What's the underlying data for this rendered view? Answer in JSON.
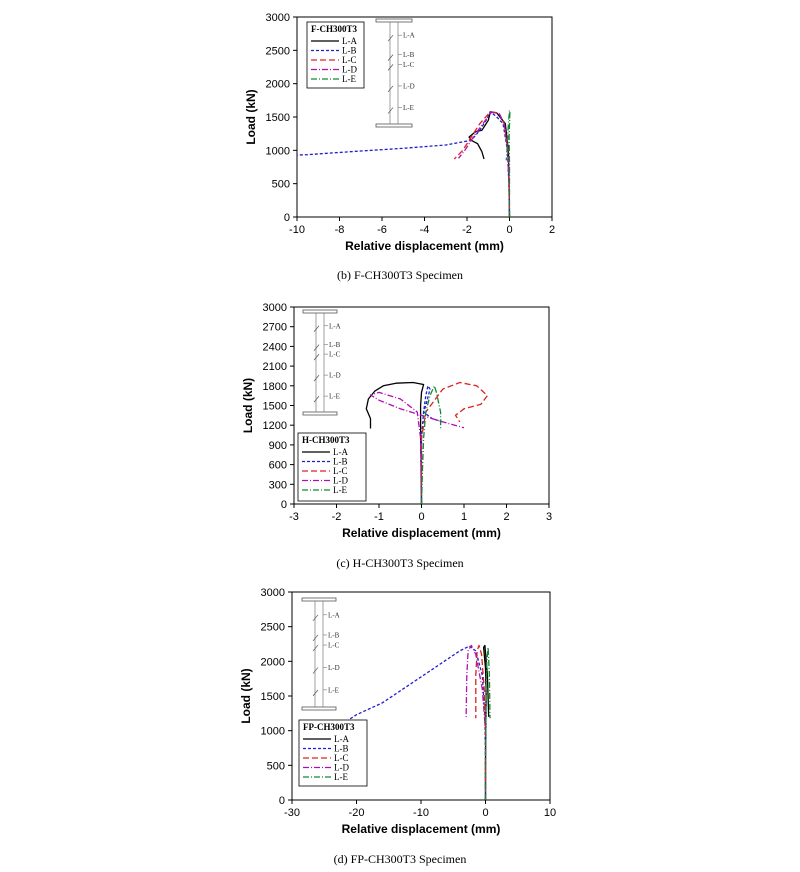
{
  "chart_data": [
    {
      "type": "line",
      "specimen": "F-CH300T3",
      "caption": "(b)  F-CH300T3  Specimen",
      "xlabel": "Relative displacement (mm)",
      "ylabel": "Load (kN)",
      "xlim": [
        -10,
        2
      ],
      "ylim": [
        0,
        3000
      ],
      "xticks": [
        -10,
        -8,
        -6,
        -4,
        -2,
        0,
        2
      ],
      "yticks": [
        0,
        500,
        1000,
        1500,
        2000,
        2500,
        3000
      ],
      "grid": false,
      "legend_title": "F-CH300T3",
      "legend_position": "top-left",
      "gauge_labels": [
        "L-A",
        "L-B",
        "L-C",
        "L-D",
        "L-E"
      ],
      "series": [
        {
          "name": "L-A",
          "color": "#000000",
          "dash": "",
          "x": [
            0,
            -0.02,
            -0.05,
            -0.2,
            -0.6,
            -0.9,
            -1.0,
            -1.3,
            -1.6,
            -1.9,
            -1.8,
            -1.5,
            -1.3,
            -1.2
          ],
          "y": [
            0,
            500,
            1000,
            1400,
            1560,
            1580,
            1450,
            1300,
            1280,
            1200,
            1150,
            1100,
            980,
            870
          ]
        },
        {
          "name": "L-B",
          "color": "#1f1fcc",
          "dash": "3,2",
          "x": [
            0,
            -0.03,
            -0.1,
            -0.3,
            -0.6,
            -0.9,
            -1.1,
            -1.4,
            -1.8,
            -3,
            -5,
            -7,
            -8.6,
            -9.5,
            -10
          ],
          "y": [
            0,
            500,
            1000,
            1400,
            1500,
            1580,
            1450,
            1300,
            1150,
            1080,
            1030,
            990,
            955,
            935,
            930
          ]
        },
        {
          "name": "L-C",
          "color": "#e02020",
          "dash": "6,3",
          "x": [
            0,
            -0.03,
            -0.08,
            -0.25,
            -0.5,
            -0.9,
            -1.4,
            -1.8,
            -2.2,
            -2.6
          ],
          "y": [
            0,
            500,
            1000,
            1400,
            1560,
            1580,
            1400,
            1200,
            1000,
            870
          ]
        },
        {
          "name": "L-D",
          "color": "#b010b0",
          "dash": "6,2,1,2",
          "x": [
            0,
            -0.03,
            -0.08,
            -0.25,
            -0.5,
            -0.85,
            -1.3,
            -1.7,
            -2.1,
            -2.4
          ],
          "y": [
            0,
            500,
            1000,
            1400,
            1560,
            1570,
            1380,
            1200,
            1000,
            880
          ]
        },
        {
          "name": "L-E",
          "color": "#108a30",
          "dash": "6,2,1,2",
          "x": [
            0,
            0,
            0,
            -0.02,
            0.02,
            0,
            -0.05,
            -0.1,
            -0.15
          ],
          "y": [
            0,
            300,
            800,
            1200,
            1580,
            1600,
            1400,
            1100,
            850
          ]
        }
      ]
    },
    {
      "type": "line",
      "specimen": "H-CH300T3",
      "caption": "(c)  H-CH300T3  Specimen",
      "xlabel": "Relative displacement (mm)",
      "ylabel": "Load (kN)",
      "xlim": [
        -3,
        3
      ],
      "ylim": [
        0,
        3000
      ],
      "xticks": [
        -3,
        -2,
        -1,
        0,
        1,
        2,
        3
      ],
      "yticks": [
        0,
        300,
        600,
        900,
        1200,
        1500,
        1800,
        2100,
        2400,
        2700,
        3000
      ],
      "grid": false,
      "legend_title": "H-CH300T3",
      "legend_position": "bottom-left",
      "gauge_labels": [
        "L-A",
        "L-B",
        "L-C",
        "L-D",
        "L-E"
      ],
      "series": [
        {
          "name": "L-A",
          "color": "#000000",
          "dash": "",
          "x": [
            0,
            -0.01,
            -0.02,
            -0.02,
            0,
            0.05,
            -0.2,
            -0.6,
            -0.9,
            -1.1,
            -1.25,
            -1.3,
            -1.2,
            -1.2
          ],
          "y": [
            0,
            500,
            1200,
            1500,
            1700,
            1820,
            1850,
            1840,
            1800,
            1720,
            1600,
            1450,
            1300,
            1150
          ]
        },
        {
          "name": "L-B",
          "color": "#1f1fcc",
          "dash": "3,2",
          "x": [
            0,
            0,
            0,
            0.05,
            0.1,
            0.15,
            0.2,
            0.1,
            0.05,
            0.25,
            0.5
          ],
          "y": [
            0,
            500,
            1000,
            1400,
            1650,
            1800,
            1750,
            1500,
            1400,
            1300,
            1250
          ]
        },
        {
          "name": "L-C",
          "color": "#e02020",
          "dash": "6,3",
          "x": [
            0,
            0,
            0,
            0.1,
            0.5,
            0.9,
            1.3,
            1.55,
            1.4,
            1.0,
            0.8,
            0.9
          ],
          "y": [
            0,
            500,
            1000,
            1400,
            1750,
            1850,
            1800,
            1650,
            1520,
            1450,
            1350,
            1250
          ]
        },
        {
          "name": "L-D",
          "color": "#b010b0",
          "dash": "6,2,1,2",
          "x": [
            0,
            0,
            -0.02,
            -0.1,
            -0.5,
            -1.0,
            -1.2,
            -1.0,
            -0.5,
            0,
            0.5,
            1.0
          ],
          "y": [
            0,
            500,
            1000,
            1400,
            1600,
            1700,
            1660,
            1580,
            1450,
            1350,
            1250,
            1160
          ]
        },
        {
          "name": "L-E",
          "color": "#108a30",
          "dash": "6,2,1,2",
          "x": [
            0,
            0.02,
            0.05,
            0.1,
            0.2,
            0.3,
            0.35,
            0.4,
            0.45,
            0.45
          ],
          "y": [
            0,
            500,
            1000,
            1400,
            1650,
            1800,
            1700,
            1550,
            1400,
            1130
          ]
        }
      ]
    },
    {
      "type": "line",
      "specimen": "FP-CH300T3",
      "caption": "(d)  FP-CH300T3  Specimen",
      "xlabel": "Relative displacement (mm)",
      "ylabel": "Load (kN)",
      "xlim": [
        -30,
        10
      ],
      "ylim": [
        0,
        3000
      ],
      "xticks": [
        -30,
        -20,
        -10,
        0,
        10
      ],
      "yticks": [
        0,
        500,
        1000,
        1500,
        2000,
        2500,
        3000
      ],
      "grid": false,
      "legend_title": "FP-CH300T3",
      "legend_position": "bottom-left",
      "gauge_labels": [
        "L-A",
        "L-B",
        "L-C",
        "L-D",
        "L-E"
      ],
      "series": [
        {
          "name": "L-A",
          "color": "#000000",
          "dash": "",
          "x": [
            0,
            0,
            0.05,
            0.1,
            0,
            -0.3,
            -0.1,
            0.3,
            0.5
          ],
          "y": [
            0,
            500,
            1000,
            1500,
            1900,
            2200,
            2230,
            1800,
            1200
          ]
        },
        {
          "name": "L-B",
          "color": "#1f1fcc",
          "dash": "3,2",
          "x": [
            0,
            0,
            -0.1,
            -0.5,
            -1.5,
            -2.5,
            -4,
            -8,
            -12,
            -16,
            -20,
            -21
          ],
          "y": [
            0,
            600,
            1200,
            1800,
            2150,
            2220,
            2150,
            1900,
            1650,
            1400,
            1230,
            1170
          ]
        },
        {
          "name": "L-C",
          "color": "#e02020",
          "dash": "6,3",
          "x": [
            0,
            0,
            0,
            -0.2,
            -0.6,
            -1.0,
            -1.3,
            -1.5,
            -1.5
          ],
          "y": [
            0,
            500,
            1000,
            1600,
            2100,
            2230,
            2150,
            1800,
            1180
          ]
        },
        {
          "name": "L-D",
          "color": "#b010b0",
          "dash": "6,2,1,2",
          "x": [
            0,
            0,
            0,
            -0.5,
            -1.5,
            -2.2,
            -2.7,
            -2.9,
            -3.0
          ],
          "y": [
            0,
            500,
            1000,
            1600,
            2100,
            2230,
            2150,
            1800,
            1180
          ]
        },
        {
          "name": "L-E",
          "color": "#108a30",
          "dash": "6,2,1,2",
          "x": [
            0,
            0,
            0.05,
            0.1,
            0.2,
            0.4,
            0.6,
            0.7
          ],
          "y": [
            0,
            500,
            1000,
            1600,
            2000,
            2200,
            1800,
            1180
          ]
        }
      ]
    }
  ]
}
